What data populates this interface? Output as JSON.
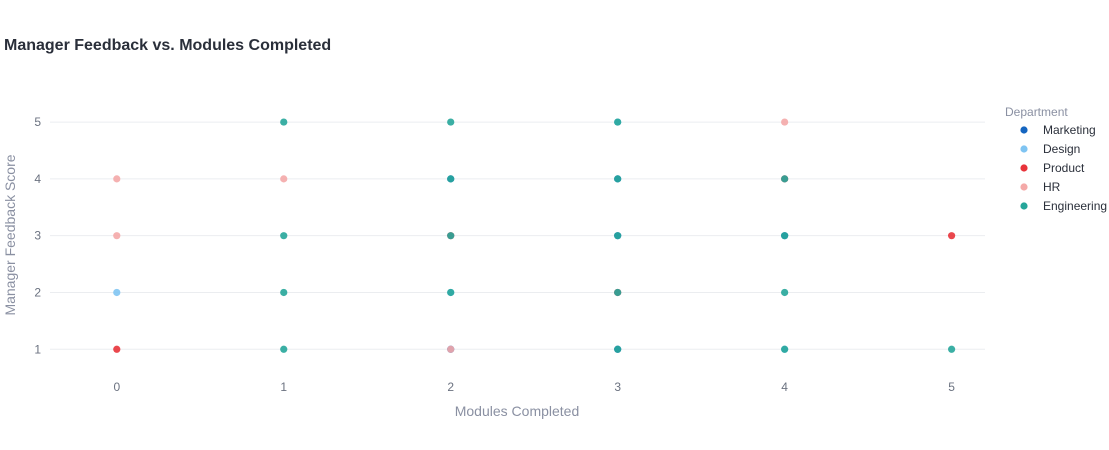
{
  "chart_data": {
    "type": "scatter",
    "title": "Manager Feedback vs. Modules Completed",
    "xlabel": "Modules Completed",
    "ylabel": "Manager Feedback Score",
    "xlim": [
      -0.4,
      5.2
    ],
    "ylim": [
      0.6,
      5.6
    ],
    "x_ticks": [
      "0",
      "1",
      "2",
      "3",
      "4",
      "5"
    ],
    "y_ticks": [
      "1",
      "2",
      "3",
      "4",
      "5"
    ],
    "grid": "horizontal",
    "legend_title": "Department",
    "legend_position": "right",
    "series": [
      {
        "name": "Marketing",
        "color": "#1565c0",
        "points": [
          [
            2,
            4
          ],
          [
            3,
            4
          ],
          [
            3,
            3
          ],
          [
            4,
            3
          ],
          [
            2,
            1
          ],
          [
            3,
            1
          ]
        ]
      },
      {
        "name": "Design",
        "color": "#7fc4f2",
        "points": [
          [
            0,
            2
          ],
          [
            2,
            2
          ],
          [
            3,
            5
          ],
          [
            4,
            1
          ]
        ]
      },
      {
        "name": "Product",
        "color": "#e8333a",
        "points": [
          [
            0,
            1
          ],
          [
            2,
            3
          ],
          [
            3,
            2
          ],
          [
            4,
            4
          ],
          [
            5,
            3
          ]
        ]
      },
      {
        "name": "HR",
        "color": "#f4a9a8",
        "points": [
          [
            0,
            4
          ],
          [
            0,
            3
          ],
          [
            1,
            4
          ],
          [
            2,
            1
          ],
          [
            4,
            5
          ]
        ]
      },
      {
        "name": "Engineering",
        "color": "#26a69a",
        "points": [
          [
            1,
            5
          ],
          [
            1,
            3
          ],
          [
            1,
            2
          ],
          [
            1,
            1
          ],
          [
            2,
            5
          ],
          [
            2,
            4
          ],
          [
            2,
            3
          ],
          [
            2,
            2
          ],
          [
            3,
            5
          ],
          [
            3,
            4
          ],
          [
            3,
            3
          ],
          [
            3,
            2
          ],
          [
            3,
            1
          ],
          [
            4,
            4
          ],
          [
            4,
            3
          ],
          [
            4,
            2
          ],
          [
            4,
            1
          ],
          [
            5,
            1
          ]
        ]
      }
    ]
  }
}
